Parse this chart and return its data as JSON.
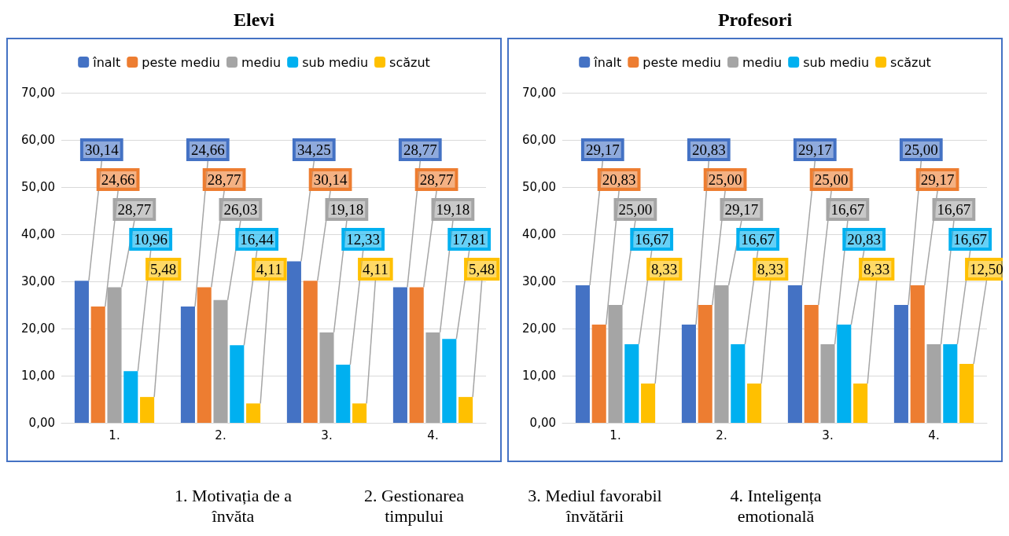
{
  "chart_data": [
    {
      "type": "bar",
      "title": "Elevi",
      "categories": [
        "1.",
        "2.",
        "3.",
        "4."
      ],
      "series": [
        {
          "name": "înalt",
          "color": "#4472c4",
          "values": [
            30.14,
            24.66,
            34.25,
            28.77
          ],
          "value_labels": [
            "30,14",
            "24,66",
            "34,25",
            "28,77"
          ]
        },
        {
          "name": "peste mediu",
          "color": "#ed7d31",
          "values": [
            24.66,
            28.77,
            30.14,
            28.77
          ],
          "value_labels": [
            "24,66",
            "28,77",
            "30,14",
            "28,77"
          ]
        },
        {
          "name": "mediu",
          "color": "#a5a5a5",
          "values": [
            28.77,
            26.03,
            19.18,
            19.18
          ],
          "value_labels": [
            "28,77",
            "26,03",
            "19,18",
            "19,18"
          ]
        },
        {
          "name": "sub mediu",
          "color": "#00b0f0",
          "values": [
            10.96,
            16.44,
            12.33,
            17.81
          ],
          "value_labels": [
            "10,96",
            "16,44",
            "12,33",
            "17,81"
          ]
        },
        {
          "name": "scăzut",
          "color": "#ffc000",
          "values": [
            5.48,
            4.11,
            4.11,
            5.48
          ],
          "value_labels": [
            "5,48",
            "4,11",
            "4,11",
            "5,48"
          ]
        }
      ],
      "ylim": [
        0,
        70
      ],
      "yticks": [
        {
          "value": 0,
          "label": "0,00"
        },
        {
          "value": 10,
          "label": "10,00"
        },
        {
          "value": 20,
          "label": "20,00"
        },
        {
          "value": 30,
          "label": "30,00"
        },
        {
          "value": 40,
          "label": "40,00"
        },
        {
          "value": 50,
          "label": "50,00"
        },
        {
          "value": 60,
          "label": "60,00"
        },
        {
          "value": 70,
          "label": "70,00"
        }
      ],
      "grid": "y",
      "legend": "top",
      "annotations": [
        "1. Motivația de a învăta",
        "2. Gestionarea timpului",
        "3. Mediul favorabil învătării",
        "4. Inteligența emotională"
      ]
    },
    {
      "type": "bar",
      "title": "Profesori",
      "categories": [
        "1.",
        "2.",
        "3.",
        "4."
      ],
      "series": [
        {
          "name": "înalt",
          "color": "#4472c4",
          "values": [
            29.17,
            20.83,
            29.17,
            25.0
          ],
          "value_labels": [
            "29,17",
            "20,83",
            "29,17",
            "25,00"
          ]
        },
        {
          "name": "peste mediu",
          "color": "#ed7d31",
          "values": [
            20.83,
            25.0,
            25.0,
            29.17
          ],
          "value_labels": [
            "20,83",
            "25,00",
            "25,00",
            "29,17"
          ]
        },
        {
          "name": "mediu",
          "color": "#a5a5a5",
          "values": [
            25.0,
            29.17,
            16.67,
            16.67
          ],
          "value_labels": [
            "25,00",
            "29,17",
            "16,67",
            "16,67"
          ]
        },
        {
          "name": "sub mediu",
          "color": "#00b0f0",
          "values": [
            16.67,
            16.67,
            20.83,
            16.67
          ],
          "value_labels": [
            "16,67",
            "16,67",
            "20,83",
            "16,67"
          ]
        },
        {
          "name": "scăzut",
          "color": "#ffc000",
          "values": [
            8.33,
            8.33,
            8.33,
            12.5
          ],
          "value_labels": [
            "8,33",
            "8,33",
            "8,33",
            "12,50"
          ]
        }
      ],
      "ylim": [
        0,
        70
      ],
      "yticks": [
        {
          "value": 0,
          "label": "0,00"
        },
        {
          "value": 10,
          "label": "10,00"
        },
        {
          "value": 20,
          "label": "20,00"
        },
        {
          "value": 30,
          "label": "30,00"
        },
        {
          "value": 40,
          "label": "40,00"
        },
        {
          "value": 50,
          "label": "50,00"
        },
        {
          "value": 60,
          "label": "60,00"
        },
        {
          "value": 70,
          "label": "70,00"
        }
      ],
      "grid": "y",
      "legend": "top"
    }
  ]
}
